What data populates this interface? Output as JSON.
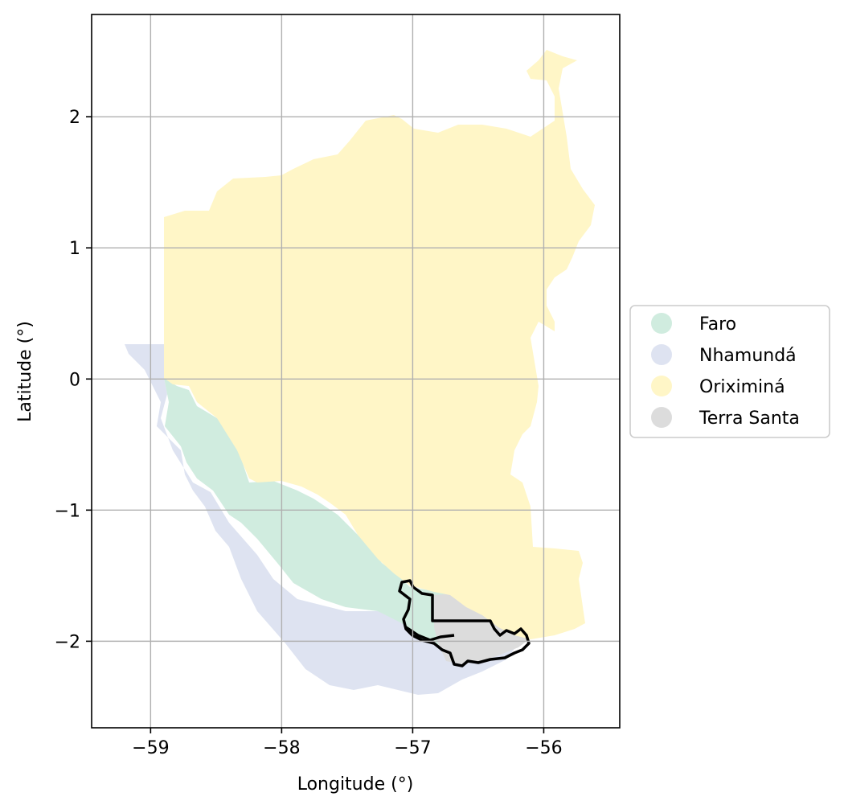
{
  "map": {
    "xlabel": "Longitude (°)",
    "ylabel": "Latitude (°)",
    "xlim": [
      -59.45,
      -55.42
    ],
    "ylim": [
      -2.66,
      2.78
    ],
    "xticks": [
      -59,
      -58,
      -57,
      -56
    ],
    "yticks": [
      -2,
      -1,
      0,
      1,
      2
    ],
    "x_tick_labels": [
      "−59",
      "−58",
      "−57",
      "−56"
    ],
    "y_tick_labels": [
      "−2",
      "−1",
      "0",
      "1",
      "2"
    ],
    "grid": true,
    "legend_position": "right",
    "legend": [
      {
        "label": "Faro",
        "color": "#d0ecdf"
      },
      {
        "label": "Nhamundá",
        "color": "#dee3f1"
      },
      {
        "label": "Oriximiná",
        "color": "#fff6c7"
      },
      {
        "label": "Terra Santa",
        "color": "#dcdcdc"
      }
    ],
    "highlight_outline_color": "#000000"
  }
}
